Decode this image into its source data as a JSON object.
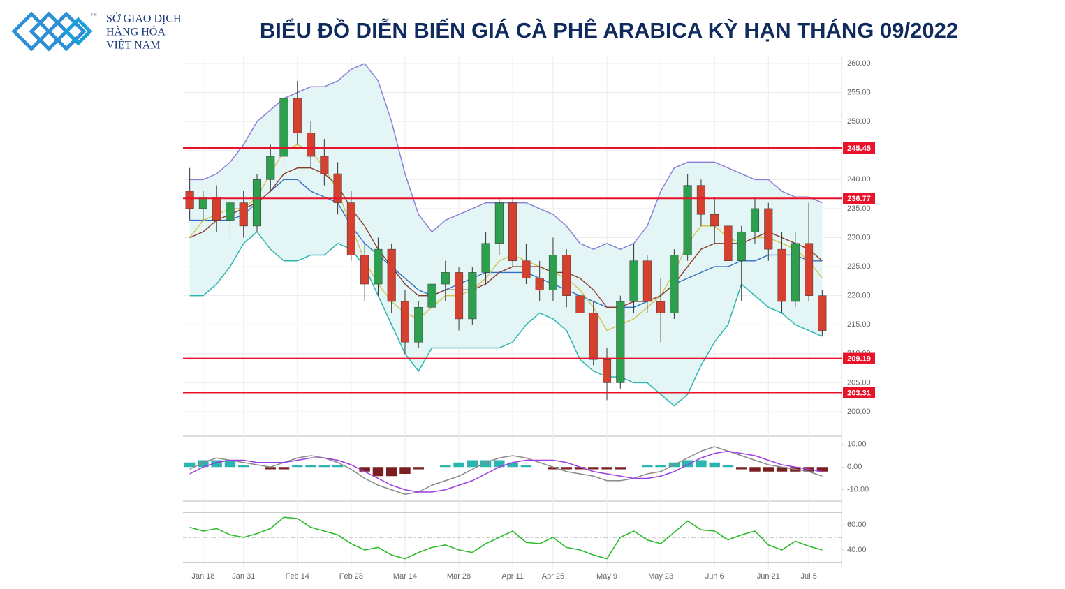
{
  "logo": {
    "lines": [
      "SỞ GIAO DỊCH",
      "HÀNG HÓA",
      "VIỆT NAM"
    ],
    "trademark": "TM"
  },
  "chart_data": [
    {
      "type": "candlestick",
      "title": "BIỂU ĐỒ DIỄN BIẾN GIÁ CÀ PHÊ ARABICA KỲ HẠN THÁNG 09/2022",
      "categories": [
        null,
        "Jan 18",
        null,
        null,
        "Jan 31",
        null,
        null,
        null,
        "Feb 14",
        null,
        null,
        null,
        "Feb 28",
        null,
        null,
        null,
        "Mar 14",
        null,
        null,
        null,
        "Mar 28",
        null,
        null,
        null,
        "Apr 11",
        null,
        null,
        "Apr 25",
        null,
        null,
        null,
        "May 9",
        null,
        null,
        null,
        "May 23",
        null,
        null,
        null,
        "Jun 6",
        null,
        null,
        null,
        "Jun 21",
        null,
        null,
        "Jul 5",
        null
      ],
      "open": [
        238,
        235,
        237,
        233,
        236,
        232,
        240,
        244,
        254,
        248,
        244,
        241,
        236,
        227,
        222,
        228,
        219,
        212,
        218,
        222,
        224,
        216,
        224,
        229,
        236,
        226,
        223,
        221,
        227,
        220,
        217,
        209,
        205,
        219,
        226,
        219,
        217,
        227,
        239,
        234,
        232,
        226,
        231,
        235,
        228,
        219,
        229,
        220
      ],
      "high": [
        242,
        238,
        239,
        237,
        238,
        241,
        246,
        256,
        257,
        250,
        247,
        243,
        238,
        229,
        230,
        229,
        221,
        219,
        224,
        226,
        225,
        225,
        231,
        237,
        237,
        229,
        226,
        230,
        228,
        222,
        219,
        211,
        220,
        229,
        227,
        223,
        228,
        241,
        240,
        237,
        233,
        232,
        237,
        236,
        231,
        231,
        236,
        221
      ],
      "low": [
        233,
        233,
        231,
        230,
        230,
        231,
        238,
        242,
        246,
        242,
        239,
        234,
        226,
        219,
        220,
        217,
        210,
        211,
        216,
        219,
        214,
        215,
        222,
        227,
        225,
        222,
        219,
        219,
        218,
        215,
        208,
        202,
        204,
        217,
        217,
        212,
        216,
        226,
        232,
        229,
        224,
        219,
        229,
        226,
        217,
        218,
        219,
        213
      ],
      "close": [
        235,
        237,
        233,
        236,
        232,
        240,
        244,
        254,
        248,
        244,
        241,
        236,
        227,
        222,
        228,
        219,
        212,
        218,
        222,
        224,
        216,
        224,
        229,
        236,
        226,
        223,
        221,
        227,
        220,
        217,
        209,
        205,
        219,
        226,
        219,
        217,
        227,
        239,
        234,
        232,
        226,
        231,
        235,
        228,
        219,
        229,
        220,
        214
      ],
      "up_color": "#2e9e4f",
      "down_color": "#d6402f",
      "bands": {
        "fill": "#e3f5f5",
        "upper_color": "#8c7fd6",
        "lower_color": "#2bb5b0",
        "upper": [
          240,
          240,
          241,
          243,
          246,
          250,
          252,
          254,
          255,
          256,
          256,
          257,
          259,
          260,
          257,
          250,
          241,
          234,
          231,
          233,
          234,
          235,
          236,
          236,
          236,
          236,
          235,
          234,
          232,
          229,
          228,
          229,
          228,
          229,
          232,
          238,
          242,
          243,
          243,
          243,
          242,
          241,
          240,
          240,
          238,
          237,
          237,
          236
        ],
        "lower": [
          220,
          220,
          222,
          225,
          229,
          231,
          228,
          226,
          226,
          227,
          227,
          229,
          228,
          225,
          220,
          215,
          210,
          207,
          211,
          211,
          211,
          211,
          211,
          211,
          212,
          215,
          217,
          216,
          214,
          209,
          207,
          206,
          206,
          205,
          205,
          203,
          201,
          203,
          208,
          212,
          215,
          222,
          220,
          218,
          217,
          215,
          214,
          213
        ]
      },
      "lines": [
        {
          "color": "#2f6fc4",
          "values": [
            233,
            233,
            233,
            233,
            234,
            236,
            238,
            240,
            240,
            238,
            237,
            236,
            232,
            229,
            227,
            225,
            223,
            221,
            220,
            221,
            222,
            223,
            224,
            224,
            224,
            224,
            223,
            222,
            221,
            220,
            219,
            218,
            218,
            218,
            219,
            220,
            222,
            223,
            224,
            225,
            225,
            226,
            226,
            227,
            227,
            227,
            226,
            226
          ]
        },
        {
          "color": "#d6c24a",
          "values": [
            230,
            233,
            234,
            235,
            235,
            237,
            241,
            245,
            246,
            245,
            242,
            238,
            232,
            226,
            222,
            219,
            217,
            216,
            218,
            220,
            220,
            221,
            223,
            226,
            227,
            226,
            225,
            224,
            223,
            221,
            218,
            214,
            215,
            216,
            218,
            220,
            224,
            229,
            232,
            232,
            230,
            229,
            230,
            230,
            229,
            228,
            226,
            223
          ]
        },
        {
          "color": "#8a3b2a",
          "values": [
            230,
            231,
            233,
            234,
            235,
            236,
            238,
            241,
            242,
            242,
            241,
            239,
            235,
            232,
            228,
            225,
            222,
            220,
            220,
            221,
            221,
            221,
            222,
            224,
            225,
            225,
            225,
            224,
            224,
            223,
            221,
            218,
            218,
            219,
            219,
            220,
            222,
            225,
            228,
            229,
            229,
            229,
            230,
            231,
            230,
            229,
            228,
            226
          ]
        }
      ],
      "levels": [
        245.45,
        236.77,
        209.19,
        203.31
      ],
      "level_color": "#e8132b",
      "ylim": [
        200,
        260
      ],
      "yticks": [
        {
          "value": 200,
          "label": "200.00"
        },
        {
          "value": 205,
          "label": "205.00"
        },
        {
          "value": 210,
          "label": "210.00"
        },
        {
          "value": 215,
          "label": "215.00"
        },
        {
          "value": 220,
          "label": "220.00"
        },
        {
          "value": 225,
          "label": "225.00"
        },
        {
          "value": 230,
          "label": "230.00"
        },
        {
          "value": 235,
          "label": "235.00"
        },
        {
          "value": 240,
          "label": "240.00"
        },
        {
          "value": 245,
          "label": "245.00"
        },
        {
          "value": 250,
          "label": "250.00"
        },
        {
          "value": 255,
          "label": "255.00"
        },
        {
          "value": 260,
          "label": "260.00"
        }
      ],
      "grid": true
    },
    {
      "type": "macd",
      "histogram": [
        2,
        3,
        3,
        3,
        1,
        0,
        -1,
        -1,
        1,
        1,
        1,
        1,
        0,
        -2,
        -4,
        -4,
        -3,
        -1,
        0,
        1,
        2,
        3,
        3,
        3,
        2,
        1,
        0,
        -1,
        -1,
        -1,
        -1,
        -1,
        -1,
        0,
        1,
        1,
        2,
        3,
        3,
        2,
        1,
        -1,
        -2,
        -2,
        -2,
        -2,
        -2,
        -2
      ],
      "positive_color": "#2bb5b0",
      "negative_color": "#7a1f1f",
      "lines": [
        {
          "color": "#8a8a8a",
          "values": [
            -1,
            2,
            4,
            3,
            2,
            1,
            0,
            2,
            4,
            5,
            4,
            2,
            -1,
            -5,
            -8,
            -10,
            -12,
            -11,
            -8,
            -6,
            -4,
            -1,
            2,
            4,
            5,
            4,
            2,
            0,
            -2,
            -3,
            -4,
            -6,
            -6,
            -5,
            -3,
            -2,
            1,
            4,
            7,
            9,
            7,
            5,
            3,
            1,
            0,
            -1,
            -2,
            -4
          ]
        },
        {
          "color": "#9b3de0",
          "values": [
            -3,
            0,
            2,
            3,
            3,
            2,
            2,
            2,
            3,
            4,
            4,
            3,
            1,
            -2,
            -5,
            -8,
            -10,
            -11,
            -11,
            -10,
            -8,
            -6,
            -3,
            0,
            2,
            3,
            3,
            3,
            2,
            0,
            -2,
            -3,
            -4,
            -5,
            -5,
            -4,
            -2,
            1,
            4,
            6,
            7,
            6,
            5,
            3,
            1,
            0,
            -1,
            -2
          ]
        }
      ],
      "ylim": [
        -15,
        13
      ],
      "yticks": [
        {
          "value": 10,
          "label": "10.00"
        },
        {
          "value": 0,
          "label": "0.00"
        },
        {
          "value": -10,
          "label": "-10.00"
        }
      ]
    },
    {
      "type": "line",
      "color": "#2dbb2d",
      "values": [
        58,
        55,
        57,
        52,
        50,
        53,
        57,
        66,
        65,
        58,
        55,
        52,
        45,
        40,
        42,
        36,
        33,
        38,
        42,
        44,
        40,
        38,
        45,
        50,
        55,
        46,
        45,
        50,
        42,
        40,
        36,
        33,
        50,
        55,
        48,
        45,
        54,
        63,
        56,
        55,
        48,
        52,
        55,
        44,
        40,
        47,
        43,
        40
      ],
      "ref_line": 50,
      "ylim": [
        30,
        70
      ],
      "yticks": [
        {
          "value": 60,
          "label": "60.00"
        },
        {
          "value": 40,
          "label": "40.00"
        }
      ]
    }
  ]
}
